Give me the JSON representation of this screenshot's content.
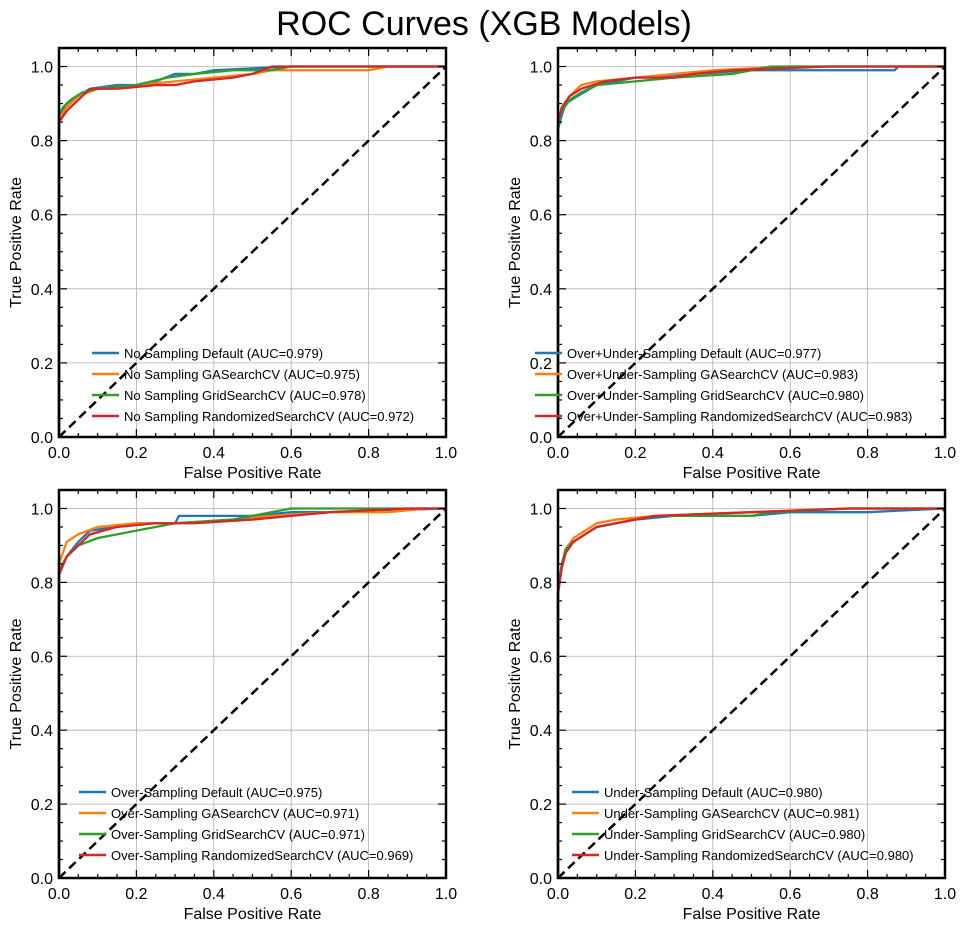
{
  "figure": {
    "title": "ROC Curves (XGB Models)",
    "series_colors": [
      "#1f77b4",
      "#ff7f0e",
      "#2ca02c",
      "#d62728"
    ],
    "diagonal_color": "#000000",
    "grid_color": "#b0b0b0"
  },
  "chart_data": [
    {
      "type": "line",
      "title": "",
      "xlabel": "False Positive Rate",
      "ylabel": "True Positive Rate",
      "xlim": [
        0,
        1
      ],
      "ylim": [
        0,
        1.05
      ],
      "xticks": [
        0,
        0.2,
        0.4,
        0.6,
        0.8,
        1.0
      ],
      "xtick_labels": [
        "0.0",
        "0.2",
        "0.4",
        "0.6",
        "0.8",
        "1.0"
      ],
      "yticks": [
        0,
        0.2,
        0.4,
        0.6,
        0.8,
        1.0
      ],
      "ytick_labels": [
        "0.0",
        "0.2",
        "0.4",
        "0.6",
        "0.8",
        "1.0"
      ],
      "grid": true,
      "legend_position": "lower-right",
      "series": [
        {
          "name": "No Sampling Default (AUC=0.979)",
          "x": [
            0,
            0,
            0.01,
            0.02,
            0.05,
            0.08,
            0.15,
            0.2,
            0.25,
            0.3,
            0.35,
            0.4,
            0.6,
            0.8,
            1.0
          ],
          "y": [
            0,
            0.86,
            0.88,
            0.9,
            0.92,
            0.94,
            0.95,
            0.95,
            0.96,
            0.98,
            0.98,
            0.99,
            1.0,
            1.0,
            1.0
          ]
        },
        {
          "name": "No Sampling GASearchCV (AUC=0.975)",
          "x": [
            0,
            0,
            0.02,
            0.05,
            0.1,
            0.2,
            0.3,
            0.4,
            0.5,
            0.55,
            0.8,
            0.85,
            1.0
          ],
          "y": [
            0,
            0.86,
            0.89,
            0.92,
            0.94,
            0.95,
            0.96,
            0.97,
            0.98,
            0.99,
            0.99,
            1.0,
            1.0
          ]
        },
        {
          "name": "No Sampling GridSearchCV (AUC=0.978)",
          "x": [
            0,
            0,
            0.01,
            0.03,
            0.06,
            0.1,
            0.2,
            0.28,
            0.35,
            0.45,
            0.55,
            0.6,
            1.0
          ],
          "y": [
            0,
            0.87,
            0.89,
            0.91,
            0.93,
            0.94,
            0.95,
            0.97,
            0.98,
            0.99,
            0.99,
            1.0,
            1.0
          ]
        },
        {
          "name": "No Sampling RandomizedSearchCV (AUC=0.972)",
          "x": [
            0,
            0,
            0.02,
            0.04,
            0.08,
            0.15,
            0.25,
            0.3,
            0.35,
            0.45,
            0.5,
            0.55,
            1.0
          ],
          "y": [
            0,
            0.85,
            0.88,
            0.9,
            0.94,
            0.94,
            0.95,
            0.95,
            0.96,
            0.97,
            0.98,
            1.0,
            1.0
          ]
        }
      ]
    },
    {
      "type": "line",
      "title": "",
      "xlabel": "False Positive Rate",
      "ylabel": "True Positive Rate",
      "xlim": [
        0,
        1
      ],
      "ylim": [
        0,
        1.05
      ],
      "xticks": [
        0,
        0.2,
        0.4,
        0.6,
        0.8,
        1.0
      ],
      "xtick_labels": [
        "0.0",
        "0.2",
        "0.4",
        "0.6",
        "0.8",
        "1.0"
      ],
      "yticks": [
        0,
        0.2,
        0.4,
        0.6,
        0.8,
        1.0
      ],
      "ytick_labels": [
        "0.0",
        "0.2",
        "0.4",
        "0.6",
        "0.8",
        "1.0"
      ],
      "grid": true,
      "legend_position": "lower-right",
      "series": [
        {
          "name": "Over+Under-Sampling Default (AUC=0.977)",
          "x": [
            0,
            0,
            0.01,
            0.02,
            0.05,
            0.1,
            0.15,
            0.2,
            0.35,
            0.5,
            0.55,
            0.87,
            0.88,
            1.0
          ],
          "y": [
            0,
            0.83,
            0.87,
            0.9,
            0.92,
            0.95,
            0.96,
            0.97,
            0.98,
            0.99,
            0.99,
            0.99,
            1.0,
            1.0
          ]
        },
        {
          "name": "Over+Under-Sampling GASearchCV (AUC=0.983)",
          "x": [
            0,
            0,
            0.01,
            0.03,
            0.06,
            0.1,
            0.2,
            0.3,
            0.4,
            0.6,
            1.0
          ],
          "y": [
            0,
            0.84,
            0.89,
            0.92,
            0.95,
            0.96,
            0.97,
            0.98,
            0.99,
            1.0,
            1.0
          ]
        },
        {
          "name": "Over+Under-Sampling GridSearchCV (AUC=0.980)",
          "x": [
            0,
            0,
            0.01,
            0.03,
            0.06,
            0.1,
            0.2,
            0.3,
            0.45,
            0.5,
            0.55,
            1.0
          ],
          "y": [
            0,
            0.84,
            0.88,
            0.91,
            0.93,
            0.95,
            0.96,
            0.97,
            0.98,
            0.99,
            1.0,
            1.0
          ]
        },
        {
          "name": "Over+Under-Sampling RandomizedSearchCV (AUC=0.983)",
          "x": [
            0,
            0,
            0.01,
            0.03,
            0.06,
            0.12,
            0.2,
            0.3,
            0.35,
            0.45,
            0.7,
            1.0
          ],
          "y": [
            0,
            0.85,
            0.89,
            0.92,
            0.94,
            0.96,
            0.97,
            0.97,
            0.98,
            0.99,
            1.0,
            1.0
          ]
        }
      ]
    },
    {
      "type": "line",
      "title": "",
      "xlabel": "False Positive Rate",
      "ylabel": "True Positive Rate",
      "xlim": [
        0,
        1
      ],
      "ylim": [
        0,
        1.05
      ],
      "xticks": [
        0,
        0.2,
        0.4,
        0.6,
        0.8,
        1.0
      ],
      "xtick_labels": [
        "0.0",
        "0.2",
        "0.4",
        "0.6",
        "0.8",
        "1.0"
      ],
      "yticks": [
        0,
        0.2,
        0.4,
        0.6,
        0.8,
        1.0
      ],
      "ytick_labels": [
        "0.0",
        "0.2",
        "0.4",
        "0.6",
        "0.8",
        "1.0"
      ],
      "grid": true,
      "legend_position": "lower-right",
      "series": [
        {
          "name": "Over-Sampling Default (AUC=0.975)",
          "x": [
            0,
            0,
            0.02,
            0.05,
            0.08,
            0.15,
            0.2,
            0.3,
            0.31,
            0.5,
            0.6,
            0.7,
            1.0
          ],
          "y": [
            0,
            0.83,
            0.87,
            0.91,
            0.94,
            0.95,
            0.96,
            0.96,
            0.98,
            0.98,
            0.99,
            0.99,
            1.0
          ]
        },
        {
          "name": "Over-Sampling GASearchCV (AUC=0.971)",
          "x": [
            0,
            0,
            0.01,
            0.02,
            0.05,
            0.1,
            0.2,
            0.3,
            0.45,
            0.55,
            0.7,
            0.85,
            0.95,
            1.0
          ],
          "y": [
            0,
            0.85,
            0.88,
            0.91,
            0.93,
            0.95,
            0.96,
            0.96,
            0.97,
            0.98,
            0.99,
            0.99,
            1.0,
            1.0
          ]
        },
        {
          "name": "Over-Sampling GridSearchCV (AUC=0.971)",
          "x": [
            0,
            0,
            0.02,
            0.05,
            0.1,
            0.15,
            0.2,
            0.3,
            0.45,
            0.55,
            0.6,
            1.0
          ],
          "y": [
            0,
            0.83,
            0.87,
            0.9,
            0.92,
            0.93,
            0.94,
            0.96,
            0.97,
            0.99,
            1.0,
            1.0
          ]
        },
        {
          "name": "Over-Sampling RandomizedSearchCV (AUC=0.969)",
          "x": [
            0,
            0,
            0.02,
            0.05,
            0.08,
            0.15,
            0.25,
            0.35,
            0.5,
            0.6,
            0.7,
            0.9,
            1.0
          ],
          "y": [
            0,
            0.82,
            0.87,
            0.9,
            0.93,
            0.95,
            0.96,
            0.96,
            0.97,
            0.98,
            0.99,
            1.0,
            1.0
          ]
        }
      ]
    },
    {
      "type": "line",
      "title": "",
      "xlabel": "False Positive Rate",
      "ylabel": "True Positive Rate",
      "xlim": [
        0,
        1
      ],
      "ylim": [
        0,
        1.05
      ],
      "xticks": [
        0,
        0.2,
        0.4,
        0.6,
        0.8,
        1.0
      ],
      "xtick_labels": [
        "0.0",
        "0.2",
        "0.4",
        "0.6",
        "0.8",
        "1.0"
      ],
      "yticks": [
        0,
        0.2,
        0.4,
        0.6,
        0.8,
        1.0
      ],
      "ytick_labels": [
        "0.0",
        "0.2",
        "0.4",
        "0.6",
        "0.8",
        "1.0"
      ],
      "grid": true,
      "legend_position": "lower-right",
      "series": [
        {
          "name": "Under-Sampling Default (AUC=0.980)",
          "x": [
            0,
            0,
            0.01,
            0.02,
            0.04,
            0.07,
            0.1,
            0.15,
            0.2,
            0.3,
            0.5,
            0.6,
            0.8,
            1.0
          ],
          "y": [
            0,
            0.77,
            0.85,
            0.89,
            0.91,
            0.93,
            0.95,
            0.96,
            0.97,
            0.98,
            0.98,
            0.99,
            0.99,
            1.0
          ]
        },
        {
          "name": "Under-Sampling GASearchCV (AUC=0.981)",
          "x": [
            0,
            0,
            0.01,
            0.02,
            0.04,
            0.07,
            0.1,
            0.15,
            0.25,
            0.5,
            0.75,
            1.0
          ],
          "y": [
            0,
            0.78,
            0.85,
            0.89,
            0.92,
            0.94,
            0.96,
            0.97,
            0.98,
            0.99,
            1.0,
            1.0
          ]
        },
        {
          "name": "Under-Sampling GridSearchCV (AUC=0.980)",
          "x": [
            0,
            0,
            0.01,
            0.02,
            0.04,
            0.07,
            0.1,
            0.15,
            0.25,
            0.5,
            0.55,
            0.75,
            1.0
          ],
          "y": [
            0,
            0.77,
            0.85,
            0.89,
            0.91,
            0.93,
            0.95,
            0.96,
            0.98,
            0.98,
            0.99,
            1.0,
            1.0
          ]
        },
        {
          "name": "Under-Sampling RandomizedSearchCV (AUC=0.980)",
          "x": [
            0,
            0,
            0.01,
            0.02,
            0.04,
            0.07,
            0.1,
            0.15,
            0.25,
            0.5,
            0.75,
            1.0
          ],
          "y": [
            0,
            0.77,
            0.84,
            0.88,
            0.91,
            0.93,
            0.95,
            0.96,
            0.98,
            0.99,
            1.0,
            1.0
          ]
        }
      ]
    }
  ]
}
